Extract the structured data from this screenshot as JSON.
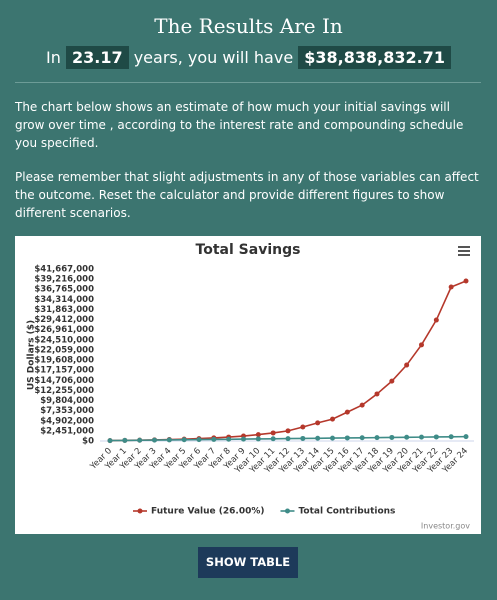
{
  "header": {
    "title": "The Results Are In",
    "line_prefix": "In",
    "years": "23.17",
    "line_middle": "years, you will have",
    "amount": "$38,838,832.71"
  },
  "paragraphs": [
    "The chart below shows an estimate of how much your initial savings will grow over time , according to the interest rate and compounding schedule you specified.",
    "Please remember that slight adjustments in any of those variables can affect the outcome. Reset the calculator and provide different figures to show different scenarios."
  ],
  "chart_data": {
    "type": "line",
    "title": "Total Savings",
    "y_label": "US Dollars ($)",
    "credit": "Investor.gov",
    "categories": [
      "Year 0",
      "Year 1",
      "Year 2",
      "Year 3",
      "Year 4",
      "Year 5",
      "Year 6",
      "Year 7",
      "Year 8",
      "Year 9",
      "Year 10",
      "Year 11",
      "Year 12",
      "Year 13",
      "Year 14",
      "Year 15",
      "Year 16",
      "Year 17",
      "Year 18",
      "Year 19",
      "Year 20",
      "Year 21",
      "Year 22",
      "Year 23",
      "Year 24"
    ],
    "series": [
      {
        "name": "Future Value (26.00%)",
        "color": "#b5382b",
        "values": [
          100000,
          150000,
          200000,
          270000,
          350000,
          450000,
          580000,
          750000,
          950000,
          1200000,
          1550000,
          1950000,
          2450000,
          3400000,
          4400000,
          5300000,
          7000000,
          8700000,
          11400000,
          14500000,
          18400000,
          23300000,
          29300000,
          37300000,
          38760000
        ]
      },
      {
        "name": "Total Contributions",
        "color": "#3f8c88",
        "values": [
          100000,
          140000,
          180000,
          220000,
          260000,
          300000,
          340000,
          380000,
          420000,
          460000,
          500000,
          540000,
          580000,
          620000,
          660000,
          700000,
          740000,
          780000,
          820000,
          860000,
          900000,
          940000,
          980000,
          1020000,
          1060000
        ]
      }
    ],
    "ylim": [
      0,
      41667000
    ],
    "yticks": [
      {
        "value": 0,
        "label": "$0"
      },
      {
        "value": 2451000,
        "label": "$2,451,000"
      },
      {
        "value": 4902000,
        "label": "$4,902,000"
      },
      {
        "value": 7353000,
        "label": "$7,353,000"
      },
      {
        "value": 9804000,
        "label": "$9,804,000"
      },
      {
        "value": 12255000,
        "label": "$12,255,000"
      },
      {
        "value": 14706000,
        "label": "$14,706,000"
      },
      {
        "value": 17157000,
        "label": "$17,157,000"
      },
      {
        "value": 19608000,
        "label": "$19,608,000"
      },
      {
        "value": 22059000,
        "label": "$22,059,000"
      },
      {
        "value": 24510000,
        "label": "$24,510,000"
      },
      {
        "value": 26961000,
        "label": "$26,961,000"
      },
      {
        "value": 29412000,
        "label": "$29,412,000"
      },
      {
        "value": 31863000,
        "label": "$31,863,000"
      },
      {
        "value": 34314000,
        "label": "$34,314,000"
      },
      {
        "value": 36765000,
        "label": "$36,765,000"
      },
      {
        "value": 39216000,
        "label": "$39,216,000"
      },
      {
        "value": 41667000,
        "label": "$41,667,000"
      }
    ],
    "grid": false
  },
  "button": "SHOW TABLE"
}
